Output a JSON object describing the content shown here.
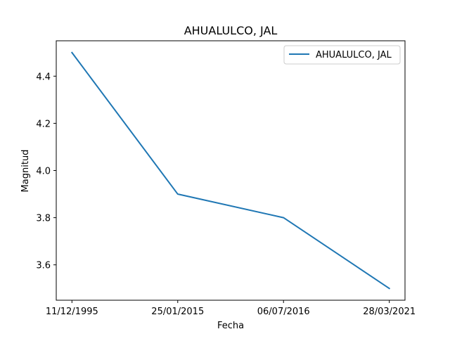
{
  "chart_data": {
    "type": "line",
    "title": "AHUALULCO, JAL",
    "xlabel": "Fecha",
    "ylabel": "Magnitud",
    "categories": [
      "11/12/1995",
      "25/01/2015",
      "06/07/2016",
      "28/03/2021"
    ],
    "series": [
      {
        "name": "AHUALULCO, JAL",
        "values": [
          4.5,
          3.9,
          3.8,
          3.5
        ],
        "color": "#1f77b4"
      }
    ],
    "ylim": [
      3.45,
      4.55
    ],
    "yticks": [
      3.6,
      3.8,
      4.0,
      4.2,
      4.4
    ],
    "ytick_labels": [
      "3.6",
      "3.8",
      "4.0",
      "4.2",
      "4.4"
    ],
    "grid": false,
    "legend": "top-right"
  }
}
